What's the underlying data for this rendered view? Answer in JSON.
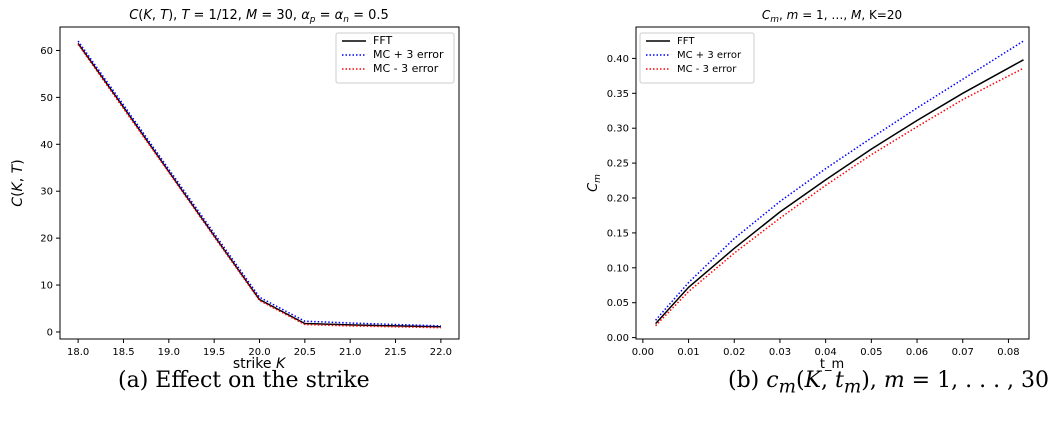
{
  "chart_data": [
    {
      "type": "line",
      "title": "C(K, T), T = 1/12, M = 30, α_p = α_n = 0.5",
      "xlabel": "strike K",
      "ylabel": "C(K, T)",
      "xlim": [
        17.8,
        22.2
      ],
      "ylim": [
        -1.5,
        65
      ],
      "xticks": [
        "18.0",
        "18.5",
        "19.0",
        "19.5",
        "20.0",
        "20.5",
        "21.0",
        "21.5",
        "22.0"
      ],
      "yticks": [
        "0",
        "10",
        "20",
        "30",
        "40",
        "50",
        "60"
      ],
      "legend_position": "top-right",
      "grid": false,
      "series": [
        {
          "name": "FFT",
          "style": "solid",
          "color": "#000000",
          "x": [
            18.0,
            18.5,
            19.0,
            19.5,
            20.0,
            20.5,
            21.0,
            21.5,
            22.0
          ],
          "y": [
            61.5,
            47.9,
            34.2,
            20.5,
            6.9,
            1.8,
            1.5,
            1.3,
            1.1
          ]
        },
        {
          "name": "MC + 3 error",
          "style": "dotted",
          "color": "#0000ff",
          "x": [
            18.0,
            18.5,
            19.0,
            19.5,
            20.0,
            20.5,
            21.0,
            21.5,
            22.0
          ],
          "y": [
            62.0,
            48.4,
            34.7,
            21.0,
            7.4,
            2.3,
            1.9,
            1.6,
            1.3
          ]
        },
        {
          "name": "MC - 3 error",
          "style": "dotted",
          "color": "#ff0000",
          "x": [
            18.0,
            18.5,
            19.0,
            19.5,
            20.0,
            20.5,
            21.0,
            21.5,
            22.0
          ],
          "y": [
            61.3,
            47.6,
            34.0,
            20.3,
            6.7,
            1.6,
            1.3,
            1.1,
            0.9
          ]
        }
      ]
    },
    {
      "type": "line",
      "title": "C_m, m = 1, ..., M, K=20",
      "xlabel": "t_m",
      "ylabel": "C_m",
      "xlim": [
        -0.0015,
        0.0845
      ],
      "ylim": [
        -0.002,
        0.445
      ],
      "xticks": [
        "0.00",
        "0.01",
        "0.02",
        "0.03",
        "0.04",
        "0.05",
        "0.06",
        "0.07",
        "0.08"
      ],
      "yticks": [
        "0.00",
        "0.05",
        "0.10",
        "0.15",
        "0.20",
        "0.25",
        "0.30",
        "0.35",
        "0.40"
      ],
      "legend_position": "top-left",
      "grid": false,
      "series": [
        {
          "name": "FFT",
          "style": "solid",
          "color": "#000000",
          "x": [
            0.0028,
            0.01,
            0.02,
            0.03,
            0.04,
            0.05,
            0.06,
            0.07,
            0.0833
          ],
          "y": [
            0.02,
            0.072,
            0.128,
            0.18,
            0.226,
            0.27,
            0.311,
            0.35,
            0.398
          ]
        },
        {
          "name": "MC + 3 error",
          "style": "dotted",
          "color": "#0000ff",
          "x": [
            0.0028,
            0.01,
            0.02,
            0.03,
            0.04,
            0.05,
            0.06,
            0.07,
            0.0833
          ],
          "y": [
            0.025,
            0.079,
            0.142,
            0.195,
            0.242,
            0.286,
            0.329,
            0.37,
            0.425
          ]
        },
        {
          "name": "MC - 3 error",
          "style": "dotted",
          "color": "#ff0000",
          "x": [
            0.0028,
            0.01,
            0.02,
            0.03,
            0.04,
            0.05,
            0.06,
            0.07,
            0.0833
          ],
          "y": [
            0.017,
            0.066,
            0.121,
            0.171,
            0.218,
            0.262,
            0.302,
            0.341,
            0.386
          ]
        }
      ]
    }
  ],
  "captions": {
    "a": "(a) Effect on the strike",
    "b": "(b) c_m(K, t_m), m = 1, . . . , 30"
  }
}
